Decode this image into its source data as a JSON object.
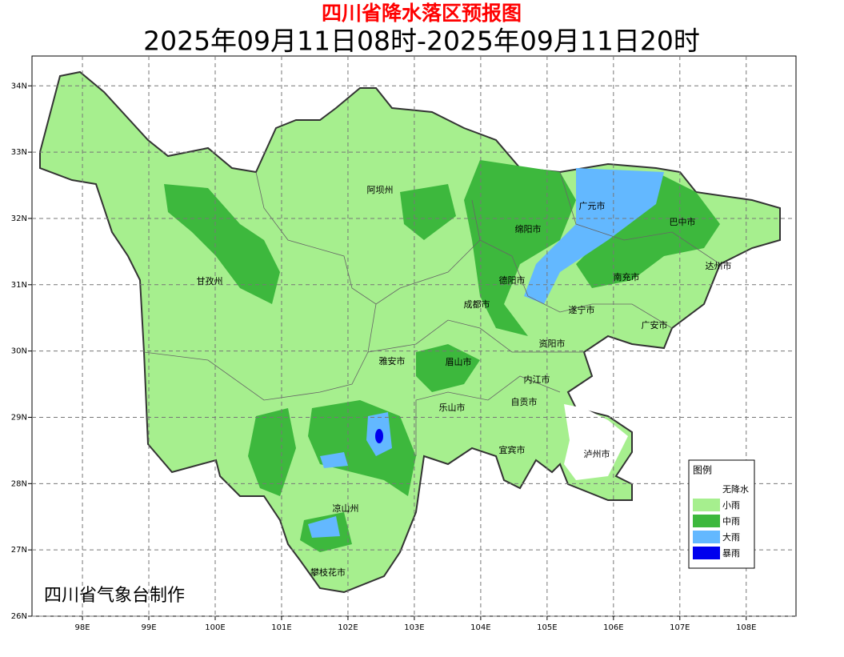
{
  "title": "四川省降水落区预报图",
  "subtitle": "2025年09月11日08时-2025年09月11日20时",
  "credit": "四川省气象台制作",
  "lonlim": [
    97.24,
    108.75
  ],
  "latlim": [
    26,
    34.45
  ],
  "lon_ticks": [
    {
      "value": 98,
      "label": "98E"
    },
    {
      "value": 99,
      "label": "99E"
    },
    {
      "value": 100,
      "label": "100E"
    },
    {
      "value": 101,
      "label": "101E"
    },
    {
      "value": 102,
      "label": "102E"
    },
    {
      "value": 103,
      "label": "103E"
    },
    {
      "value": 104,
      "label": "104E"
    },
    {
      "value": 105,
      "label": "105E"
    },
    {
      "value": 106,
      "label": "106E"
    },
    {
      "value": 107,
      "label": "107E"
    },
    {
      "value": 108,
      "label": "108E"
    }
  ],
  "lat_ticks": [
    {
      "value": 26,
      "label": "26N"
    },
    {
      "value": 27,
      "label": "27N"
    },
    {
      "value": 28,
      "label": "28N"
    },
    {
      "value": 29,
      "label": "29N"
    },
    {
      "value": 30,
      "label": "30N"
    },
    {
      "value": 31,
      "label": "31N"
    },
    {
      "value": 32,
      "label": "32N"
    },
    {
      "value": 33,
      "label": "33N"
    },
    {
      "value": 34,
      "label": "34N"
    }
  ],
  "cities": [
    "阿坝州",
    "甘孜州",
    "广元市",
    "巴中市",
    "绵阳市",
    "达州市",
    "德阳市",
    "南充市",
    "成都市",
    "遂宁市",
    "广安市",
    "资阳市",
    "雅安市",
    "眉山市",
    "内江市",
    "自贡市",
    "乐山市",
    "宜宾市",
    "泸州市",
    "凉山州",
    "攀枝花市"
  ],
  "legend": {
    "title": "图例",
    "items": [
      {
        "name": "无降水",
        "color": "#ffffff"
      },
      {
        "name": "小雨",
        "color": "#a6ef8e"
      },
      {
        "name": "中雨",
        "color": "#3db83d"
      },
      {
        "name": "大雨",
        "color": "#63b8ff"
      },
      {
        "name": "暴雨",
        "color": "#0000ee"
      }
    ]
  }
}
